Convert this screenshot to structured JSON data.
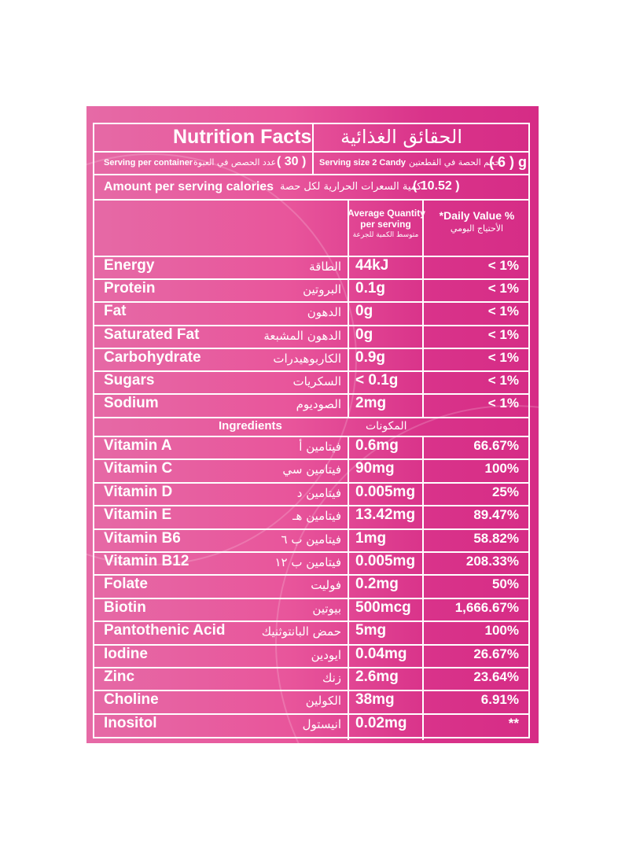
{
  "header": {
    "title_en": "Nutrition Facts",
    "title_ar": "الحقائق الغذائية",
    "serving_per_container_en": "Serving per container",
    "serving_per_container_ar": "عدد الحصص في العبوة",
    "serving_per_container_value": "( 30 )",
    "serving_size_en": "Serving size 2 Candy",
    "serving_size_ar": "حجم الحصة في القطعتين",
    "serving_size_value": "( 6 ) g",
    "calories_en": "Amount per serving calories",
    "calories_ar": "كمية السعرات الحرارية لكل حصة",
    "calories_value": "( 10.52 )"
  },
  "columns": {
    "avg_qty_line1": "Average Quantity",
    "avg_qty_line2": "per serving",
    "avg_qty_ar": "متوسط الكمية للجرعة",
    "daily_value": "*Daily Value %",
    "daily_value_ar": "الأحتياج اليومي"
  },
  "nutrients": [
    {
      "en": "Energy",
      "ar": "الطاقة",
      "qty": "44kJ",
      "dv": "< 1%"
    },
    {
      "en": "Protein",
      "ar": "البروتين",
      "qty": "0.1g",
      "dv": "< 1%"
    },
    {
      "en": "Fat",
      "ar": "الدهون",
      "qty": "0g",
      "dv": "< 1%"
    },
    {
      "en": "Saturated Fat",
      "ar": "الدهون المشبعة",
      "qty": "0g",
      "dv": "< 1%"
    },
    {
      "en": "Carbohydrate",
      "ar": "الكاربوهيدرات",
      "qty": "0.9g",
      "dv": "< 1%"
    },
    {
      "en": "Sugars",
      "ar": "السكريات",
      "qty": "< 0.1g",
      "dv": "< 1%"
    },
    {
      "en": "Sodium",
      "ar": "الصوديوم",
      "qty": "2mg",
      "dv": "< 1%"
    }
  ],
  "ingredients_header": {
    "en": "Ingredients",
    "ar": "المكونات"
  },
  "vitamins": [
    {
      "en": "Vitamin A",
      "ar": "فيتامين أ",
      "qty": "0.6mg",
      "dv": "66.67%"
    },
    {
      "en": "Vitamin C",
      "ar": "فيتامين سي",
      "qty": "90mg",
      "dv": "100%"
    },
    {
      "en": "Vitamin D",
      "ar": "فيتامين د",
      "qty": "0.005mg",
      "dv": "25%"
    },
    {
      "en": "Vitamin E",
      "ar": "فيتامين هـ",
      "qty": "13.42mg",
      "dv": "89.47%"
    },
    {
      "en": "Vitamin B6",
      "ar": "فيتامين ب ٦",
      "qty": "1mg",
      "dv": "58.82%"
    },
    {
      "en": "Vitamin B12",
      "ar": "فيتامين ب ١٢",
      "qty": "0.005mg",
      "dv": "208.33%"
    },
    {
      "en": "Folate",
      "ar": "فوليت",
      "qty": "0.2mg",
      "dv": "50%"
    },
    {
      "en": "Biotin",
      "ar": "بيوتين",
      "qty": "500mcg",
      "dv": "1,666.67%"
    },
    {
      "en": "Pantothenic Acid",
      "ar": "حمض البانتوثنيك",
      "qty": "5mg",
      "dv": "100%"
    },
    {
      "en": "Iodine",
      "ar": "ايودين",
      "qty": "0.04mg",
      "dv": "26.67%"
    },
    {
      "en": "Zinc",
      "ar": "زنك",
      "qty": "2.6mg",
      "dv": "23.64%"
    },
    {
      "en": "Choline",
      "ar": "الكولين",
      "qty": "38mg",
      "dv": "6.91%"
    },
    {
      "en": "Inositol",
      "ar": "انيستول",
      "qty": "0.02mg",
      "dv": "**"
    }
  ],
  "colors": {
    "panel_pink": "#e8559b",
    "panel_magenta": "#d62c86",
    "text": "#ffffff"
  }
}
